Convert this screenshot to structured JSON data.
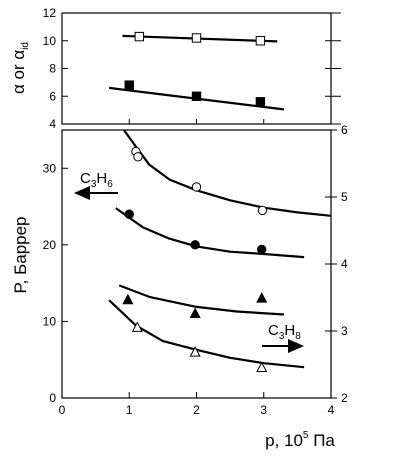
{
  "chart_data": [
    {
      "type": "scatter",
      "panel": "top",
      "ylabel": "α or α",
      "ylabel_sub": "id",
      "xlim": [
        0,
        4
      ],
      "ylim": [
        4,
        12
      ],
      "y_ticks": [
        "4",
        "6",
        "8",
        "10",
        "12"
      ],
      "series": [
        {
          "marker": "open-square",
          "points": [
            [
              1.15,
              10.3
            ],
            [
              2.0,
              10.2
            ],
            [
              2.95,
              10.0
            ]
          ],
          "fit": [
            [
              0.9,
              10.35
            ],
            [
              3.2,
              9.95
            ]
          ]
        },
        {
          "marker": "filled-square",
          "points": [
            [
              1.0,
              6.8
            ],
            [
              2.0,
              6.0
            ],
            [
              2.95,
              5.6
            ]
          ],
          "fit": [
            [
              0.7,
              6.6
            ],
            [
              3.3,
              5.05
            ]
          ]
        }
      ]
    },
    {
      "type": "scatter",
      "panel": "bottom",
      "xlabel": "p, 10",
      "xlabel_sup": "5",
      "xlabel_tail": " Па",
      "ylabel": "P, Баррер",
      "xlim": [
        0,
        4
      ],
      "ylim": [
        0,
        35
      ],
      "y2lim": [
        2,
        6
      ],
      "x_ticks": [
        "0",
        "1",
        "2",
        "3",
        "4"
      ],
      "y_ticks": [
        "0",
        "10",
        "20",
        "30"
      ],
      "y2_ticks": [
        "2",
        "3",
        "4",
        "5",
        "6"
      ],
      "annotations": [
        {
          "text": "C",
          "sub1": "3",
          "mid": "H",
          "sub2": "6",
          "arrow": "left"
        },
        {
          "text": "C",
          "sub1": "3",
          "mid": "H",
          "sub2": "8",
          "arrow": "right"
        }
      ],
      "series": [
        {
          "marker": "open-circle",
          "axis": "right",
          "points": [
            [
              1.1,
              5.68
            ],
            [
              1.13,
              5.6
            ],
            [
              2.0,
              5.15
            ],
            [
              2.98,
              4.8
            ]
          ],
          "curve": [
            [
              0.92,
              6.0
            ],
            [
              1.1,
              5.75
            ],
            [
              1.3,
              5.48
            ],
            [
              1.6,
              5.26
            ],
            [
              2.0,
              5.1
            ],
            [
              2.5,
              4.95
            ],
            [
              3.0,
              4.84
            ],
            [
              3.5,
              4.77
            ],
            [
              4.0,
              4.72
            ]
          ]
        },
        {
          "marker": "filled-circle",
          "axis": "left",
          "points": [
            [
              1.0,
              24.0
            ],
            [
              1.98,
              20.0
            ],
            [
              2.97,
              19.4
            ]
          ],
          "curve": [
            [
              0.8,
              24.8
            ],
            [
              1.2,
              22.3
            ],
            [
              1.6,
              20.8
            ],
            [
              2.0,
              19.8
            ],
            [
              2.5,
              19.1
            ],
            [
              3.0,
              18.8
            ],
            [
              3.6,
              18.4
            ]
          ]
        },
        {
          "marker": "filled-triangle",
          "axis": "left",
          "points": [
            [
              0.98,
              12.8
            ],
            [
              1.98,
              11.0
            ],
            [
              2.97,
              13.0
            ]
          ],
          "curve": [
            [
              0.85,
              14.7
            ],
            [
              1.3,
              13.2
            ],
            [
              2.0,
              11.9
            ],
            [
              2.6,
              11.3
            ],
            [
              3.3,
              10.9
            ]
          ]
        },
        {
          "marker": "open-triangle",
          "axis": "right",
          "points": [
            [
              1.12,
              3.05
            ],
            [
              1.98,
              2.68
            ],
            [
              2.97,
              2.45
            ]
          ],
          "curve": [
            [
              0.7,
              3.46
            ],
            [
              1.1,
              3.08
            ],
            [
              1.5,
              2.85
            ],
            [
              2.0,
              2.72
            ],
            [
              2.5,
              2.6
            ],
            [
              3.0,
              2.52
            ],
            [
              3.6,
              2.46
            ]
          ]
        }
      ]
    }
  ]
}
